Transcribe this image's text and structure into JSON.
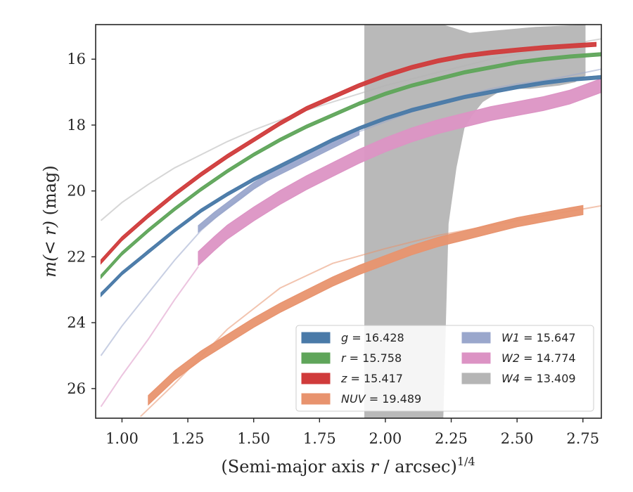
{
  "chart_data": {
    "type": "line",
    "xlabel": "(Semi-major axis r / arcsec)^{1/4}",
    "ylabel": "m(< r) (mag)",
    "xlim": [
      0.9,
      2.82
    ],
    "ylim": [
      26.9,
      14.95
    ],
    "y_inverted": true,
    "xticks": [
      1.0,
      1.25,
      1.5,
      1.75,
      2.0,
      2.25,
      2.5,
      2.75
    ],
    "xtick_labels": [
      "1.00",
      "1.25",
      "1.50",
      "1.75",
      "2.00",
      "2.25",
      "2.50",
      "2.75"
    ],
    "yticks": [
      16,
      18,
      20,
      22,
      24,
      26
    ],
    "ytick_labels": [
      "16",
      "18",
      "20",
      "22",
      "24",
      "26"
    ],
    "grid": false,
    "legend_position": "lower-right",
    "legend_columns": 2,
    "series": [
      {
        "name": "g",
        "label_name": "g",
        "value": "16.428",
        "color": "#4a7aa8",
        "faint": {
          "x": [
            0.92,
            1.1,
            1.3,
            1.5,
            1.7,
            1.9,
            2.1,
            2.3,
            2.5,
            2.7,
            2.82
          ],
          "y": [
            23.1,
            21.8,
            20.6,
            19.6,
            18.8,
            18.1,
            17.5,
            17.1,
            16.8,
            16.6,
            16.5
          ]
        },
        "bright": {
          "x": [
            0.92,
            1.0,
            1.1,
            1.2,
            1.3,
            1.4,
            1.5,
            1.6,
            1.7,
            1.8,
            1.9,
            2.0,
            2.1,
            2.2,
            2.3,
            2.4,
            2.5,
            2.6,
            2.7,
            2.82
          ],
          "y": [
            23.15,
            22.5,
            21.85,
            21.2,
            20.6,
            20.1,
            19.65,
            19.25,
            18.85,
            18.45,
            18.1,
            17.8,
            17.55,
            17.35,
            17.15,
            17.0,
            16.85,
            16.72,
            16.62,
            16.55
          ],
          "width": 0.1
        }
      },
      {
        "name": "r",
        "label_name": "r",
        "value": "15.758",
        "color": "#5fa55a",
        "bright": {
          "x": [
            0.92,
            1.0,
            1.1,
            1.2,
            1.3,
            1.4,
            1.5,
            1.6,
            1.7,
            1.8,
            1.9,
            2.0,
            2.1,
            2.2,
            2.3,
            2.4,
            2.5,
            2.6,
            2.7,
            2.82
          ],
          "y": [
            22.6,
            21.9,
            21.2,
            20.55,
            19.95,
            19.4,
            18.9,
            18.45,
            18.05,
            17.7,
            17.35,
            17.05,
            16.8,
            16.6,
            16.4,
            16.25,
            16.1,
            16.0,
            15.92,
            15.85
          ],
          "width": 0.1
        }
      },
      {
        "name": "z",
        "label_name": "z",
        "value": "15.417",
        "color": "#d03b3b",
        "bright": {
          "x": [
            0.92,
            1.0,
            1.1,
            1.2,
            1.3,
            1.4,
            1.5,
            1.6,
            1.7,
            1.8,
            1.9,
            2.0,
            2.1,
            2.2,
            2.3,
            2.4,
            2.5,
            2.6,
            2.7,
            2.8
          ],
          "y": [
            22.15,
            21.45,
            20.75,
            20.1,
            19.5,
            18.95,
            18.45,
            17.95,
            17.5,
            17.15,
            16.8,
            16.5,
            16.25,
            16.05,
            15.9,
            15.8,
            15.72,
            15.65,
            15.6,
            15.55
          ],
          "width": 0.12
        }
      },
      {
        "name": "NUV",
        "label_name": "NUV",
        "value": "19.489",
        "color": "#e8936e",
        "faint": {
          "x": [
            1.07,
            1.2,
            1.4,
            1.6,
            1.8,
            2.0,
            2.2,
            2.4,
            2.6,
            2.75,
            2.82
          ],
          "y": [
            26.85,
            25.85,
            24.2,
            22.95,
            22.2,
            21.75,
            21.35,
            21.05,
            20.75,
            20.55,
            20.45
          ]
        },
        "bright": {
          "x": [
            1.1,
            1.2,
            1.3,
            1.4,
            1.5,
            1.6,
            1.7,
            1.8,
            1.9,
            2.0,
            2.1,
            2.2,
            2.3,
            2.4,
            2.5,
            2.6,
            2.7,
            2.75
          ],
          "y": [
            26.35,
            25.6,
            25.0,
            24.5,
            24.0,
            23.55,
            23.15,
            22.75,
            22.4,
            22.1,
            21.8,
            21.55,
            21.35,
            21.15,
            20.95,
            20.8,
            20.65,
            20.58
          ],
          "width": 0.28
        }
      },
      {
        "name": "W1",
        "label_name": "W1",
        "value": "15.647",
        "color": "#9aa7cc",
        "faint": {
          "x": [
            0.92,
            1.0,
            1.1,
            1.2,
            1.3,
            1.4,
            1.5,
            1.6,
            1.7,
            1.8,
            1.9,
            2.0,
            2.1,
            2.2,
            2.3,
            2.4,
            2.5,
            2.6,
            2.7,
            2.82
          ],
          "y": [
            25.0,
            24.1,
            23.1,
            22.1,
            21.2,
            20.5,
            19.9,
            19.4,
            19.0,
            18.6,
            18.2,
            17.9,
            17.6,
            17.35,
            17.1,
            16.9,
            16.75,
            16.65,
            16.5,
            16.3
          ]
        },
        "bright": {
          "x": [
            1.29,
            1.35,
            1.4,
            1.45,
            1.5,
            1.55,
            1.6,
            1.65,
            1.7,
            1.75,
            1.8,
            1.85,
            1.9
          ],
          "y": [
            21.15,
            20.75,
            20.45,
            20.15,
            19.85,
            19.6,
            19.4,
            19.2,
            19.0,
            18.8,
            18.6,
            18.4,
            18.2
          ],
          "width": 0.2
        }
      },
      {
        "name": "W2",
        "label_name": "W2",
        "value": "14.774",
        "color": "#dc93c4",
        "faint": {
          "x": [
            0.92,
            1.0,
            1.1,
            1.2,
            1.29
          ],
          "y": [
            26.55,
            25.6,
            24.5,
            23.3,
            22.3
          ]
        },
        "bright": {
          "x": [
            1.29,
            1.35,
            1.4,
            1.5,
            1.6,
            1.7,
            1.8,
            1.9,
            2.0,
            2.1,
            2.2,
            2.3,
            2.4,
            2.5,
            2.6,
            2.7,
            2.82
          ],
          "y": [
            22.05,
            21.6,
            21.25,
            20.7,
            20.2,
            19.75,
            19.35,
            18.95,
            18.6,
            18.3,
            18.05,
            17.85,
            17.65,
            17.5,
            17.35,
            17.15,
            16.8
          ],
          "width": 0.42
        }
      },
      {
        "name": "W4",
        "label_name": "W4",
        "value": "13.409",
        "color": "#b5b5b5",
        "faint": {
          "x": [
            0.92,
            1.0,
            1.1,
            1.2,
            1.3,
            1.4,
            1.5,
            1.6,
            1.7,
            1.8,
            1.9,
            2.0,
            2.1,
            2.2,
            2.3,
            2.4,
            2.5,
            2.6,
            2.7,
            2.82
          ],
          "y": [
            20.9,
            20.35,
            19.8,
            19.3,
            18.9,
            18.5,
            18.15,
            17.85,
            17.55,
            17.3,
            17.05,
            16.8,
            16.6,
            16.4,
            16.2,
            16.0,
            15.85,
            15.7,
            15.55,
            15.38
          ]
        },
        "band": {
          "x_top": [
            1.92,
            2.22,
            2.32,
            2.57,
            2.76
          ],
          "y_top": [
            14.95,
            14.95,
            15.2,
            15.02,
            14.95
          ],
          "x_bottom": [
            2.76,
            2.72,
            2.66,
            2.55,
            2.45,
            2.37,
            2.33,
            2.3,
            2.27,
            2.24,
            2.22,
            2.02,
            1.92
          ],
          "y_bottom": [
            16.5,
            16.7,
            16.8,
            16.9,
            16.9,
            17.3,
            17.7,
            18.1,
            19.3,
            21.0,
            26.9,
            26.9,
            26.9
          ]
        }
      }
    ]
  }
}
